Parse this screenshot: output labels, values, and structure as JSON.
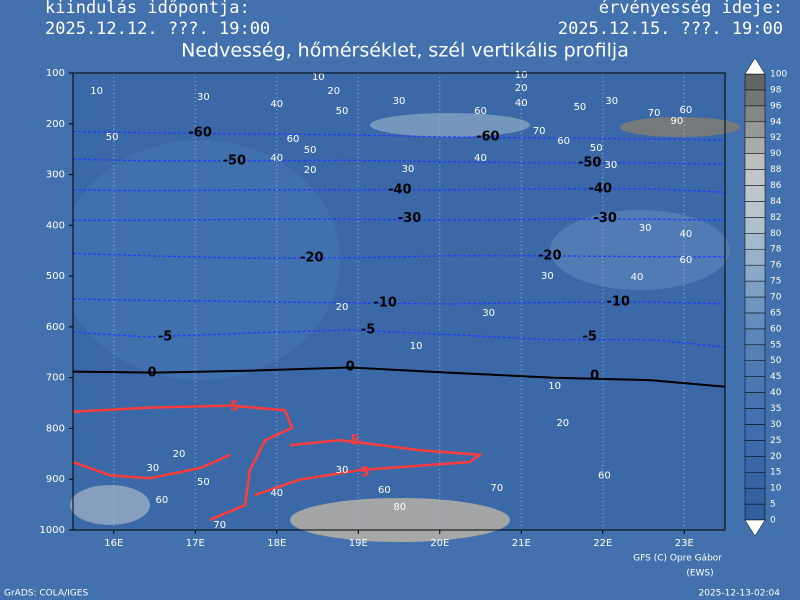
{
  "header": {
    "left_label": "kiindulás időpontja:",
    "left_time": "2025.12.12. ???. 19:00",
    "right_label": "érvényesség ideje:",
    "right_time": "2025.12.15. ???. 19:00"
  },
  "chart_data": {
    "type": "contour",
    "title": "Nedvesség, hőmérséklet, szél vertikális profilja",
    "xlim": [
      15.5,
      23.5
    ],
    "xticks": [
      {
        "value": 16,
        "label": "16E"
      },
      {
        "value": 17,
        "label": "17E"
      },
      {
        "value": 18,
        "label": "18E"
      },
      {
        "value": 19,
        "label": "19E"
      },
      {
        "value": 20,
        "label": "20E"
      },
      {
        "value": 21,
        "label": "21E"
      },
      {
        "value": 22,
        "label": "22E"
      },
      {
        "value": 23,
        "label": "23E"
      }
    ],
    "ylim": [
      1000,
      100
    ],
    "yticks": [
      100,
      200,
      300,
      400,
      500,
      600,
      700,
      800,
      900,
      1000
    ],
    "grid": true,
    "series": [
      {
        "color": "#000000",
        "dashed": false,
        "width": 2,
        "x": [
          15.5,
          16.5,
          17.7,
          18.9,
          20.1,
          21.4,
          22.6,
          23.5
        ],
        "values": [
          688,
          690,
          686,
          680,
          690,
          700,
          705,
          718
        ]
      },
      {
        "color": "#1f3fff",
        "dashed": true,
        "width": 1.3,
        "x": [
          15.5,
          16.4,
          17.7,
          18.9,
          20.1,
          21.3,
          22.6,
          23.5
        ],
        "values": [
          610,
          620,
          612,
          606,
          615,
          625,
          625,
          640
        ]
      },
      {
        "color": "#1f3fff",
        "dashed": true,
        "width": 1.3,
        "x": [
          15.5,
          16.4,
          17.7,
          18.9,
          20.1,
          21.3,
          22.6,
          23.5
        ],
        "values": [
          545,
          548,
          550,
          553,
          555,
          552,
          551,
          555
        ]
      },
      {
        "color": "#1f3fff",
        "dashed": true,
        "width": 1.3,
        "x": [
          15.5,
          16.4,
          17.7,
          18.9,
          20.1,
          21.3,
          22.6,
          23.5
        ],
        "values": [
          455,
          460,
          465,
          464,
          460,
          460,
          462,
          462
        ]
      },
      {
        "color": "#1f3fff",
        "dashed": true,
        "width": 1.3,
        "x": [
          15.5,
          16.4,
          17.7,
          18.9,
          20.1,
          21.3,
          22.6,
          23.5
        ],
        "values": [
          390,
          390,
          388,
          388,
          390,
          388,
          388,
          390
        ]
      },
      {
        "color": "#1f3fff",
        "dashed": true,
        "width": 1.3,
        "x": [
          15.5,
          16.4,
          17.7,
          18.9,
          20.1,
          21.3,
          22.6,
          23.5
        ],
        "values": [
          330,
          332,
          330,
          330,
          330,
          328,
          328,
          335
        ]
      },
      {
        "color": "#1f3fff",
        "dashed": true,
        "width": 1.3,
        "x": [
          15.5,
          16.4,
          17.7,
          18.9,
          20.1,
          21.3,
          22.6,
          23.5
        ],
        "values": [
          270,
          273,
          273,
          272,
          275,
          277,
          277,
          280
        ]
      },
      {
        "color": "#1f3fff",
        "dashed": true,
        "width": 1.3,
        "x": [
          15.5,
          16.4,
          17.7,
          18.9,
          20.1,
          21.3,
          22.6,
          23.5
        ],
        "values": [
          215,
          218,
          220,
          222,
          226,
          228,
          230,
          232
        ]
      },
      {
        "color": "#ff3b3b",
        "dashed": false,
        "width": 2.5,
        "x": [
          15.5,
          16.44,
          17.43,
          18.1,
          18.19,
          17.86,
          17.67,
          17.61,
          17.18,
          null,
          18.16,
          18.78,
          19.76,
          20.49,
          20.37,
          19.02,
          18.28,
          17.73,
          null,
          15.5,
          15.95,
          16.44,
          17.06,
          17.43
        ],
        "values": [
          767,
          759,
          755,
          764,
          799,
          823,
          882,
          951,
          980,
          null,
          833,
          823,
          843,
          852,
          866,
          882,
          901,
          931,
          null,
          866,
          892,
          898,
          878,
          852
        ]
      }
    ],
    "temp_labels": [
      {
        "x": 17.06,
        "y": 218,
        "value": -60
      },
      {
        "x": 20.59,
        "y": 226,
        "value": -60
      },
      {
        "x": 17.48,
        "y": 273,
        "value": -50
      },
      {
        "x": 21.84,
        "y": 277,
        "value": -50
      },
      {
        "x": 19.51,
        "y": 330,
        "value": -40
      },
      {
        "x": 21.97,
        "y": 328,
        "value": -40
      },
      {
        "x": 19.63,
        "y": 387,
        "value": -30
      },
      {
        "x": 22.03,
        "y": 387,
        "value": -30
      },
      {
        "x": 18.43,
        "y": 464,
        "value": -20
      },
      {
        "x": 21.35,
        "y": 460,
        "value": -20
      },
      {
        "x": 19.33,
        "y": 553,
        "value": -10
      },
      {
        "x": 22.19,
        "y": 551,
        "value": -10
      },
      {
        "x": 16.63,
        "y": 620,
        "value": -5
      },
      {
        "x": 19.12,
        "y": 606,
        "value": -5
      },
      {
        "x": 21.84,
        "y": 620,
        "value": -5
      },
      {
        "x": 16.47,
        "y": 691,
        "value": 0
      },
      {
        "x": 18.9,
        "y": 679,
        "value": 0
      },
      {
        "x": 21.9,
        "y": 697,
        "value": 0
      },
      {
        "x": 17.48,
        "y": 758,
        "value": 5
      },
      {
        "x": 18.96,
        "y": 825,
        "value": 5
      },
      {
        "x": 19.08,
        "y": 888,
        "value": 5
      }
    ],
    "rh_labels": [
      {
        "x": 15.79,
        "y": 135,
        "value": 10
      },
      {
        "x": 18.51,
        "y": 108,
        "value": 10
      },
      {
        "x": 21.0,
        "y": 104,
        "value": 10
      },
      {
        "x": 17.1,
        "y": 147,
        "value": 30
      },
      {
        "x": 18.7,
        "y": 135,
        "value": 20
      },
      {
        "x": 21.0,
        "y": 130,
        "value": 20
      },
      {
        "x": 18.0,
        "y": 161,
        "value": 40
      },
      {
        "x": 18.8,
        "y": 175,
        "value": 50
      },
      {
        "x": 19.5,
        "y": 155,
        "value": 30
      },
      {
        "x": 21.0,
        "y": 159,
        "value": 40
      },
      {
        "x": 20.5,
        "y": 175,
        "value": 60
      },
      {
        "x": 21.72,
        "y": 167,
        "value": 50
      },
      {
        "x": 22.11,
        "y": 155,
        "value": 30
      },
      {
        "x": 21.22,
        "y": 214,
        "value": 70
      },
      {
        "x": 21.52,
        "y": 234,
        "value": 60
      },
      {
        "x": 21.92,
        "y": 248,
        "value": 50
      },
      {
        "x": 22.63,
        "y": 179,
        "value": 70
      },
      {
        "x": 23.02,
        "y": 173,
        "value": 60
      },
      {
        "x": 22.91,
        "y": 195,
        "value": 90
      },
      {
        "x": 15.98,
        "y": 226,
        "value": 50
      },
      {
        "x": 18.2,
        "y": 230,
        "value": 60
      },
      {
        "x": 18.41,
        "y": 252,
        "value": 50
      },
      {
        "x": 18.0,
        "y": 267,
        "value": 40
      },
      {
        "x": 18.41,
        "y": 291,
        "value": 20
      },
      {
        "x": 19.61,
        "y": 289,
        "value": 30
      },
      {
        "x": 20.5,
        "y": 267,
        "value": 40
      },
      {
        "x": 22.1,
        "y": 281,
        "value": 30
      },
      {
        "x": 22.52,
        "y": 405,
        "value": 30
      },
      {
        "x": 23.02,
        "y": 417,
        "value": 40
      },
      {
        "x": 23.02,
        "y": 468,
        "value": 60
      },
      {
        "x": 22.42,
        "y": 502,
        "value": 40
      },
      {
        "x": 21.32,
        "y": 500,
        "value": 30
      },
      {
        "x": 18.8,
        "y": 561,
        "value": 20
      },
      {
        "x": 20.6,
        "y": 573,
        "value": 30
      },
      {
        "x": 19.71,
        "y": 638,
        "value": 10
      },
      {
        "x": 21.41,
        "y": 716,
        "value": 10
      },
      {
        "x": 21.51,
        "y": 789,
        "value": 20
      },
      {
        "x": 16.8,
        "y": 850,
        "value": 20
      },
      {
        "x": 16.48,
        "y": 878,
        "value": 30
      },
      {
        "x": 17.1,
        "y": 905,
        "value": 50
      },
      {
        "x": 16.59,
        "y": 941,
        "value": 60
      },
      {
        "x": 18.0,
        "y": 927,
        "value": 40
      },
      {
        "x": 18.8,
        "y": 882,
        "value": 30
      },
      {
        "x": 19.32,
        "y": 921,
        "value": 60
      },
      {
        "x": 19.51,
        "y": 955,
        "value": 80
      },
      {
        "x": 20.7,
        "y": 917,
        "value": 70
      },
      {
        "x": 22.02,
        "y": 893,
        "value": 60
      },
      {
        "x": 17.3,
        "y": 990,
        "value": 70
      }
    ],
    "colorbar": {
      "levels": [
        0,
        5,
        10,
        15,
        20,
        25,
        30,
        35,
        40,
        45,
        50,
        55,
        60,
        65,
        70,
        75,
        76,
        78,
        80,
        82,
        84,
        86,
        88,
        90,
        92,
        94,
        96,
        98,
        100
      ],
      "colors": [
        "#2f5f9e",
        "#32629f",
        "#3565a3",
        "#3868a6",
        "#3b6ba9",
        "#3e6eab",
        "#4171ae",
        "#4574b0",
        "#4977b2",
        "#4e7bb4",
        "#5480b7",
        "#5b86b9",
        "#648dbc",
        "#7096c0",
        "#7d9fc4",
        "#8aa8c7",
        "#97b1ca",
        "#a3b9cc",
        "#afc0cd",
        "#b9c4cc",
        "#bfc6cb",
        "#c2c6c8",
        "#bcbebf",
        "#a9abad",
        "#96989a",
        "#848688",
        "#737577",
        "#626466"
      ]
    }
  },
  "footer": {
    "credit": "GFS (C) Opre Gábor",
    "credit2": "(EWS)",
    "software": "GrADS: COLA/IGES",
    "timestamp": "2025-12-13-02:04"
  }
}
